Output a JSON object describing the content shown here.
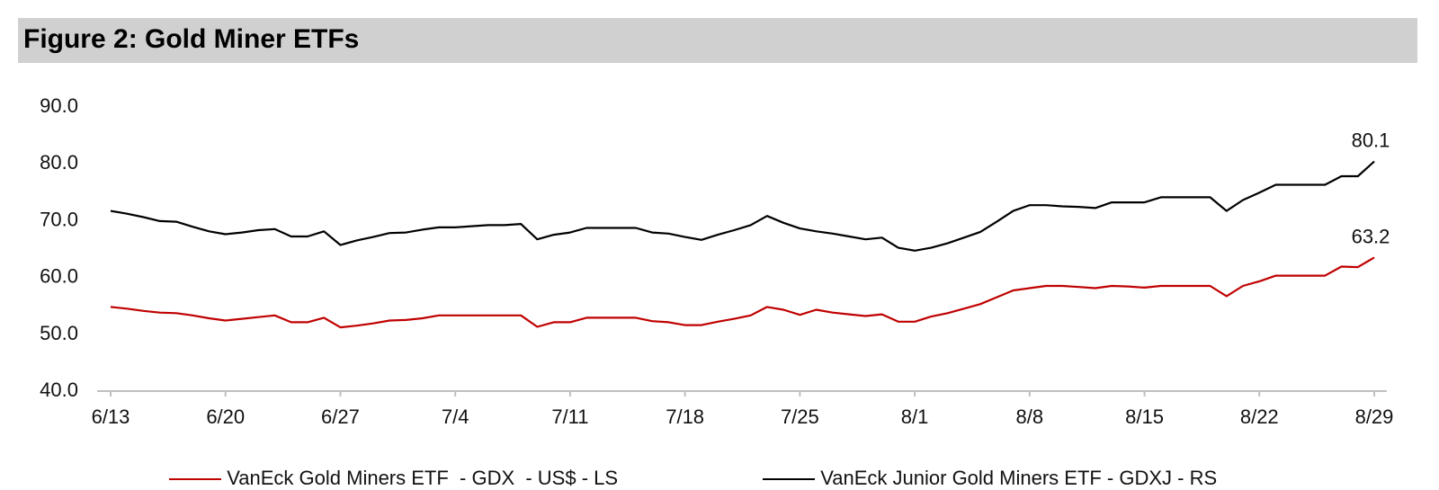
{
  "figure": {
    "title": "Figure 2: Gold Miner ETFs"
  },
  "chart_data": {
    "type": "line",
    "title": "Figure 2: Gold Miner ETFs",
    "xlabel": "",
    "ylabel": "",
    "ylim": [
      40,
      90
    ],
    "yticks": [
      "40.0",
      "50.0",
      "60.0",
      "70.0",
      "80.0",
      "90.0"
    ],
    "xticks": [
      "6/13",
      "6/20",
      "6/27",
      "7/4",
      "7/11",
      "7/18",
      "7/25",
      "8/1",
      "8/8",
      "8/15",
      "8/22",
      "8/29"
    ],
    "grid": false,
    "legend_position": "bottom",
    "x": [
      "6/13",
      "6/14",
      "6/15",
      "6/16",
      "6/17",
      "6/18",
      "6/19",
      "6/20",
      "6/21",
      "6/22",
      "6/23",
      "6/24",
      "6/25",
      "6/26",
      "6/27",
      "6/28",
      "6/29",
      "6/30",
      "7/1",
      "7/2",
      "7/3",
      "7/4",
      "7/5",
      "7/6",
      "7/7",
      "7/8",
      "7/9",
      "7/10",
      "7/11",
      "7/12",
      "7/13",
      "7/14",
      "7/15",
      "7/16",
      "7/17",
      "7/18",
      "7/19",
      "7/20",
      "7/21",
      "7/22",
      "7/23",
      "7/24",
      "7/25",
      "7/26",
      "7/27",
      "7/28",
      "7/29",
      "7/30",
      "7/31",
      "8/1",
      "8/2",
      "8/3",
      "8/4",
      "8/5",
      "8/6",
      "8/7",
      "8/8",
      "8/9",
      "8/10",
      "8/11",
      "8/12",
      "8/13",
      "8/14",
      "8/15",
      "8/16",
      "8/17",
      "8/18",
      "8/19",
      "8/20",
      "8/21",
      "8/22",
      "8/23",
      "8/24",
      "8/25",
      "8/26",
      "8/27",
      "8/28",
      "8/29"
    ],
    "series": [
      {
        "name": "VanEck Gold Miners ETF  - GDX  - US$ - LS",
        "color": "#c00000",
        "axis": "left",
        "values": [
          54.5,
          54.2,
          53.8,
          53.5,
          53.4,
          53.0,
          52.5,
          52.1,
          52.4,
          52.7,
          53.0,
          51.8,
          51.8,
          52.6,
          50.9,
          51.2,
          51.6,
          52.1,
          52.2,
          52.5,
          53.0,
          53.0,
          53.0,
          53.0,
          53.0,
          53.0,
          51.0,
          51.8,
          51.8,
          52.6,
          52.6,
          52.6,
          52.6,
          52.0,
          51.8,
          51.3,
          51.3,
          51.9,
          52.4,
          53.0,
          54.5,
          54.0,
          53.1,
          54.0,
          53.5,
          53.2,
          52.9,
          53.2,
          51.9,
          51.9,
          52.8,
          53.4,
          54.2,
          55.0,
          56.2,
          57.4,
          57.8,
          58.2,
          58.2,
          58.0,
          57.8,
          58.2,
          58.1,
          57.9,
          58.2,
          58.2,
          58.2,
          58.2,
          56.4,
          58.2,
          59.0,
          60.0,
          60.0,
          60.0,
          60.0,
          61.6,
          61.5,
          63.2
        ]
      },
      {
        "name": "VanEck Junior Gold Miners ETF - GDXJ - RS",
        "color": "#000000",
        "axis": "right",
        "values": [
          71.4,
          70.9,
          70.3,
          69.6,
          69.5,
          68.6,
          67.8,
          67.3,
          67.6,
          68.0,
          68.2,
          66.9,
          66.9,
          67.8,
          65.4,
          66.2,
          66.8,
          67.5,
          67.6,
          68.1,
          68.5,
          68.5,
          68.7,
          68.9,
          68.9,
          69.1,
          66.4,
          67.2,
          67.6,
          68.4,
          68.4,
          68.4,
          68.4,
          67.6,
          67.4,
          66.8,
          66.3,
          67.2,
          68.0,
          68.9,
          70.5,
          69.3,
          68.3,
          67.8,
          67.4,
          66.9,
          66.4,
          66.7,
          64.9,
          64.4,
          64.9,
          65.7,
          66.7,
          67.7,
          69.5,
          71.4,
          72.4,
          72.4,
          72.2,
          72.1,
          71.9,
          72.9,
          72.9,
          72.9,
          73.8,
          73.8,
          73.8,
          73.8,
          71.4,
          73.3,
          74.6,
          76.0,
          76.0,
          76.0,
          76.0,
          77.5,
          77.5,
          80.1
        ]
      }
    ],
    "annotations": [
      {
        "series": "VanEck Junior Gold Miners ETF - GDXJ - RS",
        "x": "8/29",
        "text": "80.1"
      },
      {
        "series": "VanEck Gold Miners ETF  - GDX  - US$ - LS",
        "x": "8/29",
        "text": "63.2"
      }
    ]
  }
}
